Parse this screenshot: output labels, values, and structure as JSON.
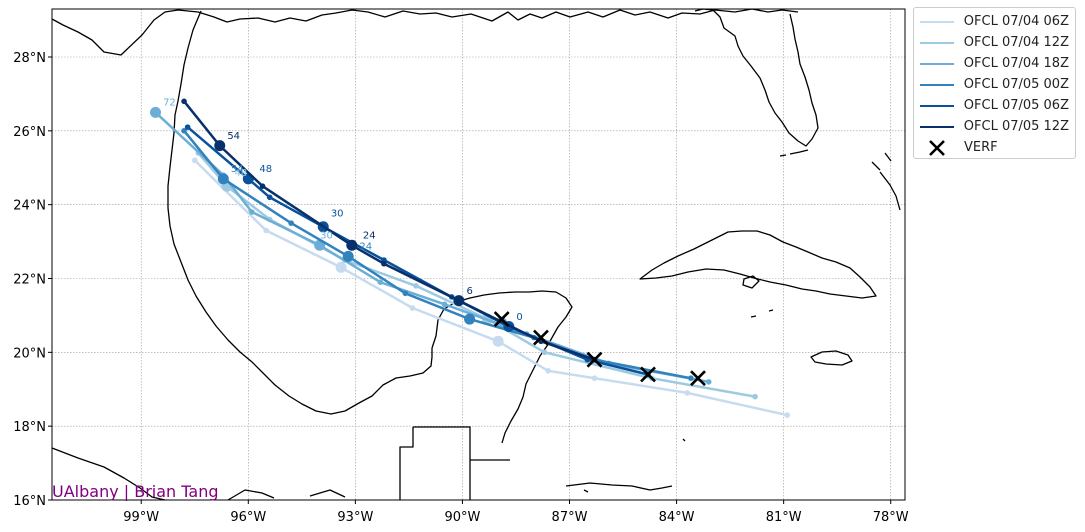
{
  "map": {
    "lon_range": [
      -101.5,
      -77.6
    ],
    "lat_range": [
      16.0,
      29.3
    ],
    "grid": true,
    "lon_ticks": [
      {
        "value": -99,
        "label": "99°W"
      },
      {
        "value": -96,
        "label": "96°W"
      },
      {
        "value": -93,
        "label": "93°W"
      },
      {
        "value": -90,
        "label": "90°W"
      },
      {
        "value": -87,
        "label": "87°W"
      },
      {
        "value": -84,
        "label": "84°W"
      },
      {
        "value": -81,
        "label": "81°W"
      },
      {
        "value": -78,
        "label": "78°W"
      }
    ],
    "lat_ticks": [
      {
        "value": 16,
        "label": "16°N"
      },
      {
        "value": 18,
        "label": "18°N"
      },
      {
        "value": 20,
        "label": "20°N"
      },
      {
        "value": 22,
        "label": "22°N"
      },
      {
        "value": 24,
        "label": "24°N"
      },
      {
        "value": 26,
        "label": "26°N"
      },
      {
        "value": 28,
        "label": "28°N"
      }
    ],
    "credit": "UAlbany | Brian Tang"
  },
  "chart_data": {
    "type": "line",
    "legend_position": "outside upper-right",
    "series": [
      {
        "name": "OFCL 07/04 06Z",
        "color": "#c6dbef",
        "points": [
          [
            -80.9,
            18.3
          ],
          [
            -83.7,
            18.9
          ],
          [
            -86.3,
            19.3
          ],
          [
            -87.6,
            19.5
          ],
          [
            -89.0,
            20.3
          ],
          [
            -91.4,
            21.2
          ],
          [
            -93.4,
            22.3
          ],
          [
            -95.5,
            23.3
          ],
          [
            -97.5,
            25.2
          ]
        ],
        "big": [
          [
            -89.0,
            20.3
          ],
          [
            -93.4,
            22.3
          ]
        ],
        "labels": []
      },
      {
        "name": "OFCL 07/04 12Z",
        "color": "#9ecae1",
        "points": [
          [
            -81.8,
            18.8
          ],
          [
            -84.7,
            19.3
          ],
          [
            -87.7,
            20.0
          ],
          [
            -89.3,
            20.9
          ],
          [
            -91.3,
            21.8
          ],
          [
            -93.3,
            22.5
          ],
          [
            -95.4,
            23.6
          ],
          [
            -96.6,
            24.5
          ],
          [
            -97.4,
            25.4
          ]
        ],
        "big": [
          [
            -89.3,
            20.9
          ],
          [
            -96.6,
            24.5
          ]
        ],
        "labels": [
          {
            "lon": -96.5,
            "lat": 24.7,
            "text": "48"
          }
        ]
      },
      {
        "name": "OFCL 07/04 18Z",
        "color": "#6baed6",
        "points": [
          [
            -83.1,
            19.2
          ],
          [
            -85.9,
            19.7
          ],
          [
            -88.2,
            20.5
          ],
          [
            -90.5,
            21.3
          ],
          [
            -92.3,
            21.9
          ],
          [
            -94.0,
            22.9
          ],
          [
            -95.9,
            23.8
          ],
          [
            -96.7,
            24.8
          ],
          [
            -98.6,
            26.5
          ]
        ],
        "big": [
          [
            -88.9,
            20.8
          ],
          [
            -94.0,
            22.9
          ],
          [
            -98.6,
            26.5
          ]
        ],
        "labels": [
          {
            "lon": -94.1,
            "lat": 23.0,
            "text": "30"
          },
          {
            "lon": -98.5,
            "lat": 26.6,
            "text": "72"
          }
        ]
      },
      {
        "name": "OFCL 07/05 00Z",
        "color": "#3182bd",
        "points": [
          [
            -83.6,
            19.3
          ],
          [
            -86.3,
            19.8
          ],
          [
            -88.0,
            20.4
          ],
          [
            -89.8,
            20.9
          ],
          [
            -91.6,
            21.6
          ],
          [
            -93.2,
            22.6
          ],
          [
            -94.8,
            23.5
          ],
          [
            -96.7,
            24.7
          ],
          [
            -97.8,
            26.0
          ]
        ],
        "big": [
          [
            -89.8,
            20.9
          ],
          [
            -93.2,
            22.6
          ],
          [
            -96.7,
            24.7
          ]
        ],
        "labels": [
          {
            "lon": -93.0,
            "lat": 22.7,
            "text": "24"
          },
          {
            "lon": -96.6,
            "lat": 24.8,
            "text": "54"
          }
        ]
      },
      {
        "name": "OFCL 07/05 06Z",
        "color": "#08519c",
        "points": [
          [
            -84.8,
            19.4
          ],
          [
            -86.5,
            19.8
          ],
          [
            -88.7,
            20.7
          ],
          [
            -90.3,
            21.5
          ],
          [
            -92.2,
            22.5
          ],
          [
            -93.9,
            23.4
          ],
          [
            -95.4,
            24.2
          ],
          [
            -96.0,
            24.7
          ],
          [
            -97.7,
            26.1
          ]
        ],
        "big": [
          [
            -88.7,
            20.7
          ],
          [
            -93.9,
            23.4
          ],
          [
            -96.0,
            24.7
          ]
        ],
        "labels": [
          {
            "lon": -88.6,
            "lat": 20.8,
            "text": "0"
          },
          {
            "lon": -93.8,
            "lat": 23.6,
            "text": "30"
          },
          {
            "lon": -95.8,
            "lat": 24.8,
            "text": "48"
          }
        ]
      },
      {
        "name": "OFCL 07/05 12Z",
        "color": "#08306b",
        "points": [
          [
            -86.3,
            19.8
          ],
          [
            -87.8,
            20.3
          ],
          [
            -90.1,
            21.4
          ],
          [
            -92.2,
            22.4
          ],
          [
            -93.1,
            22.9
          ],
          [
            -95.6,
            24.5
          ],
          [
            -96.8,
            25.6
          ],
          [
            -97.8,
            26.8
          ]
        ],
        "big": [
          [
            -90.1,
            21.4
          ],
          [
            -93.1,
            22.9
          ],
          [
            -96.8,
            25.6
          ]
        ],
        "labels": [
          {
            "lon": -90.0,
            "lat": 21.5,
            "text": "6"
          },
          {
            "lon": -92.9,
            "lat": 23.0,
            "text": "24"
          },
          {
            "lon": -96.7,
            "lat": 25.7,
            "text": "54"
          }
        ]
      }
    ],
    "verification": {
      "name": "VERF",
      "color": "#000000",
      "points": [
        [
          -83.4,
          19.3
        ],
        [
          -84.8,
          19.4
        ],
        [
          -86.3,
          19.8
        ],
        [
          -87.8,
          20.4
        ],
        [
          -88.9,
          20.9
        ]
      ]
    }
  }
}
